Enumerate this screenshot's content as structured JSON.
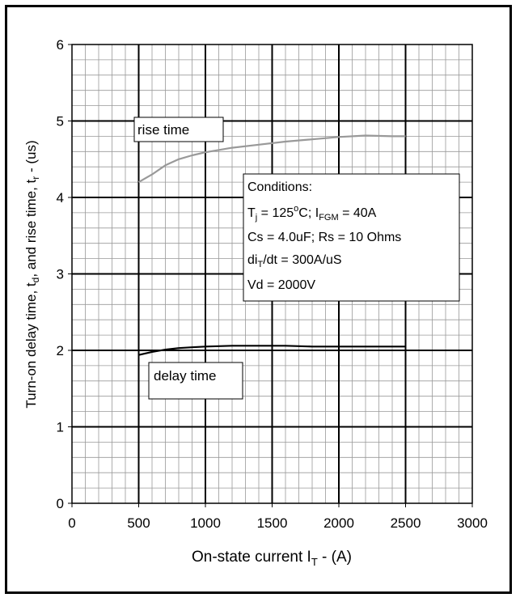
{
  "chart_data": {
    "type": "line",
    "xlabel": {
      "main": "On-state current I",
      "sub": "T",
      "tail": " - (A)"
    },
    "ylabel": {
      "p1": "Turn-on delay time, t",
      "s1": "d",
      "p2": ", and rise time, t",
      "s2": "r",
      "p3": " - (us)"
    },
    "xlim": [
      0,
      3000
    ],
    "ylim": [
      0,
      6
    ],
    "xticks": [
      "0",
      "500",
      "1000",
      "1500",
      "2000",
      "2500",
      "3000"
    ],
    "yticks": [
      "0",
      "1",
      "2",
      "3",
      "4",
      "5",
      "6"
    ],
    "grid": true,
    "series": [
      {
        "name": "rise time",
        "color": "#999999",
        "x": [
          500,
          600,
          700,
          800,
          900,
          1000,
          1200,
          1400,
          1600,
          1800,
          2000,
          2200,
          2400,
          2500
        ],
        "y": [
          4.2,
          4.3,
          4.42,
          4.5,
          4.55,
          4.59,
          4.65,
          4.69,
          4.73,
          4.76,
          4.79,
          4.81,
          4.8,
          4.8
        ]
      },
      {
        "name": "delay time",
        "color": "#000000",
        "x": [
          500,
          600,
          700,
          800,
          900,
          1000,
          1200,
          1400,
          1600,
          1800,
          2000,
          2200,
          2400,
          2500
        ],
        "y": [
          1.94,
          1.98,
          2.01,
          2.03,
          2.04,
          2.05,
          2.06,
          2.06,
          2.06,
          2.05,
          2.05,
          2.05,
          2.05,
          2.05
        ]
      }
    ],
    "labels": {
      "rise": "rise time",
      "delay": "delay time"
    },
    "conditions": {
      "heading": "Conditions:",
      "line1": {
        "a": "T",
        "a_sub": "j",
        "b": " = 125",
        "b_sup": "o",
        "c": "C; I",
        "c_sub": "FGM",
        "d": " = 40A"
      },
      "line2": "Cs = 4.0uF; Rs = 10 Ohms",
      "line3": {
        "a": "di",
        "a_sub": "T",
        "b": "/dt = 300A/uS"
      },
      "line4": "Vd = 2000V"
    }
  }
}
